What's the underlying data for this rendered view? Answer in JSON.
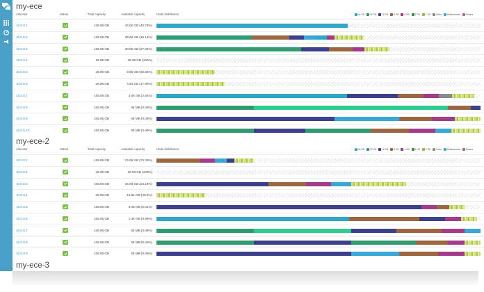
{
  "colors": {
    "sidebar": "#4a9fc6",
    "link": "#2a8dd4",
    "status_ok": "#7bc04c",
    "seg_64gb": "#2fa8c8",
    "seg_32gb": "#2e9b70",
    "seg_16gb": "#3c3f8c",
    "seg_8gb": "#9b6640",
    "seg_4gb": "#a33a8a",
    "seg_2gb": "#3a8f3a",
    "seg_1gb": "#9ab83c",
    "seg_other": "#8a8a8a",
    "seg_elasticsearch": "#3aa8d6",
    "seg_kibana": "#b55cb0"
  },
  "sidebar": {
    "icons": [
      "apps-grid-icon",
      "dashboard-icon",
      "megaphone-icon"
    ]
  },
  "columns": {
    "allocator": "Allocator",
    "status": "Status",
    "total": "Total capacity",
    "available": "Available capacity",
    "distribution": "Node distribution"
  },
  "legend": [
    {
      "label": "64 GB",
      "color": "#2fa8c8"
    },
    {
      "label": "32 GB",
      "color": "#2e9b70"
    },
    {
      "label": "16 GB",
      "color": "#3c3f8c"
    },
    {
      "label": "8 GB",
      "color": "#9b6640"
    },
    {
      "label": "4 GB",
      "color": "#a33a8a"
    },
    {
      "label": "2 GB",
      "color": "#3a8f3a"
    },
    {
      "label": "1 GB",
      "color": "#9ab83c"
    },
    {
      "label": "Other",
      "color": "#8a8a8a"
    },
    {
      "label": "Elasticsearch",
      "color": "#3aa8d6"
    },
    {
      "label": "Kibana",
      "color": "#b55cb0"
    }
  ],
  "clusters": [
    {
      "name": "my-ece",
      "rows": [
        {
          "allocator": "10.0.0.1",
          "total": "108.06 GB",
          "available": "44.06 GB (40.78%)",
          "used_fraction": 0.59,
          "segments": [
            [
              "#2fa8c8",
              1
            ]
          ]
        },
        {
          "allocator": "10.0.0.2",
          "total": "108.06 GB",
          "available": "39.06 GB (36.15%)",
          "used_fraction": 0.64,
          "segments": [
            [
              "#2e9b70",
              0.46
            ],
            [
              "#9b6640",
              0.18
            ],
            [
              "#3c3f8c",
              0.07
            ],
            [
              "#3aa8d6",
              0.06
            ],
            [
              "#2fa8c8",
              0.05
            ],
            [
              "#a33a8a",
              0.04
            ],
            [
              "small",
              0.14
            ]
          ]
        },
        {
          "allocator": "10.0.0.3",
          "total": "108.06 GB",
          "available": "30.06 GB (27.82%)",
          "used_fraction": 0.72,
          "segments": [
            [
              "#2e9b70",
              0.62
            ],
            [
              "#3c3f8c",
              0.12
            ],
            [
              "#9b6640",
              0.1
            ],
            [
              "#a33a8a",
              0.05
            ],
            [
              "small",
              0.11
            ]
          ]
        },
        {
          "allocator": "10.0.0.4",
          "total": "26.96 GB",
          "available": "26.96 GB (100%)",
          "used_fraction": 0.0,
          "segments": []
        },
        {
          "allocator": "10.0.0.5",
          "total": "26.96 GB",
          "available": "9.86 GB (36.55%)",
          "used_fraction": 0.18,
          "segments": [
            [
              "small",
              1
            ]
          ]
        },
        {
          "allocator": "10.0.0.6",
          "total": "26.96 GB",
          "available": "4.84 GB (17.95%)",
          "used_fraction": 0.21,
          "segments": [
            [
              "small",
              1
            ]
          ]
        },
        {
          "allocator": "10.0.0.7",
          "total": "108.06 GB",
          "available": "3.06 GB (2.84%)",
          "used_fraction": 0.98,
          "segments": [
            [
              "#2fa8c8",
              0.6
            ],
            [
              "#3c3f8c",
              0.16
            ],
            [
              "#9b6640",
              0.08
            ],
            [
              "#a33a8a",
              0.05
            ],
            [
              "#8a8a8a",
              0.04
            ],
            [
              "small",
              0.07
            ]
          ]
        },
        {
          "allocator": "10.0.0.8",
          "total": "108.06 GB",
          "available": "66 MB (0.06%)",
          "used_fraction": 1.0,
          "segments": [
            [
              "#2e9b70",
              0.3
            ],
            [
              "#2ecc8f",
              0.6
            ],
            [
              "#9b6640",
              0.07
            ],
            [
              "#3c3f8c",
              0.03
            ]
          ]
        },
        {
          "allocator": "10.0.0.9",
          "total": "108.06 GB",
          "available": "66 MB (0.06%)",
          "used_fraction": 1.0,
          "segments": [
            [
              "#3c3f8c",
              0.55
            ],
            [
              "#3aa8d6",
              0.2
            ],
            [
              "#9b6640",
              0.1
            ],
            [
              "#a33a8a",
              0.07
            ],
            [
              "small",
              0.08
            ]
          ]
        },
        {
          "allocator": "10.0.0.10",
          "total": "108.06 GB",
          "available": "66 MB (0.06%)",
          "used_fraction": 1.0,
          "segments": [
            [
              "#2e9b70",
              0.3
            ],
            [
              "#3c3f8c",
              0.16
            ],
            [
              "#2e9b70",
              0.2
            ],
            [
              "#9b6640",
              0.12
            ],
            [
              "#a33a8a",
              0.08
            ],
            [
              "#3aa8d6",
              0.05
            ],
            [
              "small",
              0.09
            ]
          ]
        }
      ]
    },
    {
      "name": "my-ece-2",
      "rows": [
        {
          "allocator": "10.0.0.1",
          "total": "108.06 GB",
          "available": "76.06 GB (70.39%)",
          "used_fraction": 0.3,
          "segments": [
            [
              "#9b6640",
              0.45
            ],
            [
              "#a33a8a",
              0.15
            ],
            [
              "#3aa8d6",
              0.12
            ],
            [
              "#3c3f8c",
              0.08
            ],
            [
              "small",
              0.2
            ]
          ]
        },
        {
          "allocator": "10.0.0.2",
          "total": "26.96 GB",
          "available": "26.96 GB (100%)",
          "used_fraction": 0.0,
          "segments": []
        },
        {
          "allocator": "10.0.0.3",
          "total": "108.06 GB",
          "available": "25.06 GB (23.19%)",
          "used_fraction": 0.77,
          "segments": [
            [
              "#3c3f8c",
              0.45
            ],
            [
              "#9b6640",
              0.15
            ],
            [
              "#a33a8a",
              0.1
            ],
            [
              "#3aa8d6",
              0.08
            ],
            [
              "small",
              0.22
            ]
          ]
        },
        {
          "allocator": "10.0.0.4",
          "total": "26.96 GB",
          "available": "10.84 GB (40.2%)",
          "used_fraction": 0.15,
          "segments": [
            [
              "small",
              1
            ]
          ]
        },
        {
          "allocator": "10.0.0.5",
          "total": "108.06 GB",
          "available": "6.06 GB (5.61%)",
          "used_fraction": 0.95,
          "segments": [
            [
              "#3c3f8c",
              0.86
            ],
            [
              "#a33a8a",
              0.05
            ],
            [
              "#9b6640",
              0.04
            ],
            [
              "small",
              0.05
            ]
          ]
        },
        {
          "allocator": "10.0.0.6",
          "total": "108.06 GB",
          "available": "1.06 GB (0.99%)",
          "used_fraction": 0.99,
          "segments": [
            [
              "#2fa8c8",
              0.6
            ],
            [
              "#9b6640",
              0.22
            ],
            [
              "#3c3f8c",
              0.08
            ],
            [
              "#a33a8a",
              0.05
            ],
            [
              "small",
              0.05
            ]
          ]
        },
        {
          "allocator": "10.0.0.7",
          "total": "108.06 GB",
          "available": "66 MB (0.06%)",
          "used_fraction": 1.0,
          "segments": [
            [
              "#2e9b70",
              0.3
            ],
            [
              "#2ecc8f",
              0.3
            ],
            [
              "#3c3f8c",
              0.14
            ],
            [
              "#9b6640",
              0.14
            ],
            [
              "#a33a8a",
              0.07
            ],
            [
              "#3aa8d6",
              0.05
            ]
          ]
        },
        {
          "allocator": "10.0.0.8",
          "total": "108.06 GB",
          "available": "66 MB (0.06%)",
          "used_fraction": 1.0,
          "segments": [
            [
              "#2e9b70",
              0.3
            ],
            [
              "#3c3f8c",
              0.3
            ],
            [
              "#2e9b70",
              0.2
            ],
            [
              "#9b6640",
              0.1
            ],
            [
              "#a33a8a",
              0.05
            ],
            [
              "small",
              0.05
            ]
          ]
        },
        {
          "allocator": "10.0.0.9",
          "total": "108.06 GB",
          "available": "66 MB (0.06%)",
          "used_fraction": 1.0,
          "segments": [
            [
              "#3c3f8c",
              0.6
            ],
            [
              "#3aa8d6",
              0.15
            ],
            [
              "#9b6640",
              0.12
            ],
            [
              "#a33a8a",
              0.08
            ],
            [
              "small",
              0.05
            ]
          ]
        }
      ]
    },
    {
      "name": "my-ece-3",
      "rows": []
    }
  ]
}
